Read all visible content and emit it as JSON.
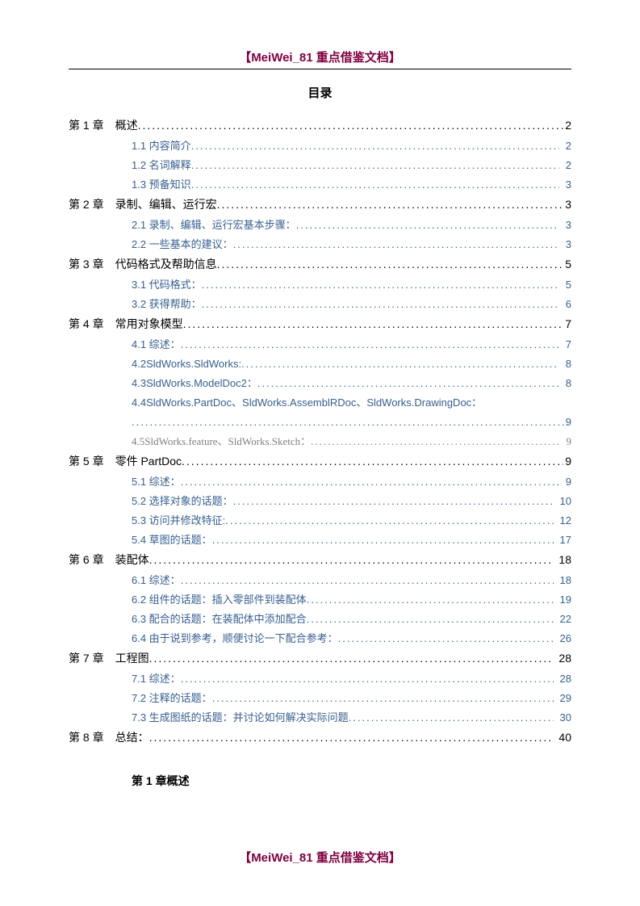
{
  "header": "【MeiWei_81 重点借鉴文档】",
  "toc_title": "目录",
  "footer": "【MeiWei_81 重点借鉴文档】",
  "chapter_heading": "第 1 章概述",
  "chapters": [
    {
      "label": "第 1 章 概述",
      "page": "2"
    },
    {
      "label": "第 2 章 录制、编辑、运行宏",
      "page": "3"
    },
    {
      "label": "第 3 章 代码格式及帮助信息",
      "page": "5"
    },
    {
      "label": "第 4 章 常用对象模型",
      "page": "7"
    },
    {
      "label": "第 5 章 零件 PartDoc",
      "page": "9"
    },
    {
      "label": "第 6 章 装配体",
      "page": "18"
    },
    {
      "label": "第 7 章 工程图",
      "page": "28"
    },
    {
      "label": "第 8 章 总结：",
      "page": "40"
    }
  ],
  "sec1": [
    {
      "label": "1.1 内容简介",
      "page": "2"
    },
    {
      "label": "1.2 名词解释",
      "page": "2"
    },
    {
      "label": "1.3 预备知识",
      "page": "3"
    }
  ],
  "sec2": [
    {
      "label": "2.1 录制、编辑、运行宏基本步骤：",
      "page": "3"
    },
    {
      "label": "2.2 一些基本的建议：",
      "page": "3"
    }
  ],
  "sec3": [
    {
      "label": "3.1 代码格式：",
      "page": "5"
    },
    {
      "label": "3.2 获得帮助：",
      "page": "6"
    }
  ],
  "sec4": [
    {
      "label": "4.1 综述：",
      "page": "7"
    },
    {
      "label": "4.2SldWorks.SldWorks:",
      "page": "8"
    },
    {
      "label": "4.3SldWorks.ModelDoc2：",
      "page": "8"
    }
  ],
  "sec4wrap": {
    "label": "4.4SldWorks.PartDoc、SldWorks.AssemblRDoc、SldWorks.DrawingDoc：",
    "page": "9"
  },
  "sec4grey": {
    "label": "4.5SldWorks.feature、SldWorks.Sketch：",
    "page": "9"
  },
  "sec5": [
    {
      "label": "5.1 综述：",
      "page": "9"
    },
    {
      "label": "5.2 选择对象的话题：",
      "page": "10"
    },
    {
      "label": "5.3 访问并修改特征:",
      "page": "12"
    },
    {
      "label": "5.4 草图的话题：",
      "page": "17"
    }
  ],
  "sec6": [
    {
      "label": "6.1 综述：",
      "page": "18"
    },
    {
      "label": "6.2 组件的话题：插入零部件到装配体",
      "page": "19"
    },
    {
      "label": "6.3 配合的话题：在装配体中添加配合",
      "page": "22"
    },
    {
      "label": "6.4 由于说到参考，顺便讨论一下配合参考：",
      "page": "26"
    }
  ],
  "sec7": [
    {
      "label": "7.1 综述：",
      "page": "28"
    },
    {
      "label": "7.2 注释的话题：",
      "page": "29"
    },
    {
      "label": "7.3 生成图纸的话题：并讨论如何解决实际问题",
      "page": "30"
    }
  ]
}
